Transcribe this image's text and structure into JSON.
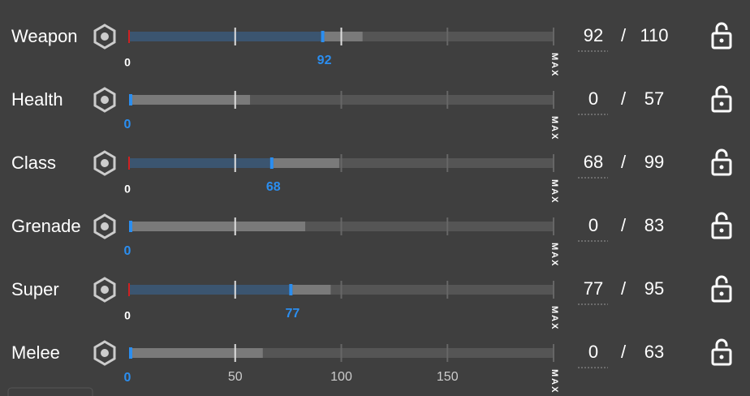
{
  "stats": [
    {
      "name": "Weapon",
      "value": 92,
      "max": 110
    },
    {
      "name": "Health",
      "value": 0,
      "max": 57
    },
    {
      "name": "Class",
      "value": 68,
      "max": 99
    },
    {
      "name": "Grenade",
      "value": 0,
      "max": 83
    },
    {
      "name": "Super",
      "value": 77,
      "max": 95
    },
    {
      "name": "Melee",
      "value": 0,
      "max": 63
    }
  ],
  "axis": {
    "ticks": [
      0,
      50,
      100,
      150
    ],
    "max_value": 200,
    "max_label": "MAX"
  },
  "separator": "/"
}
